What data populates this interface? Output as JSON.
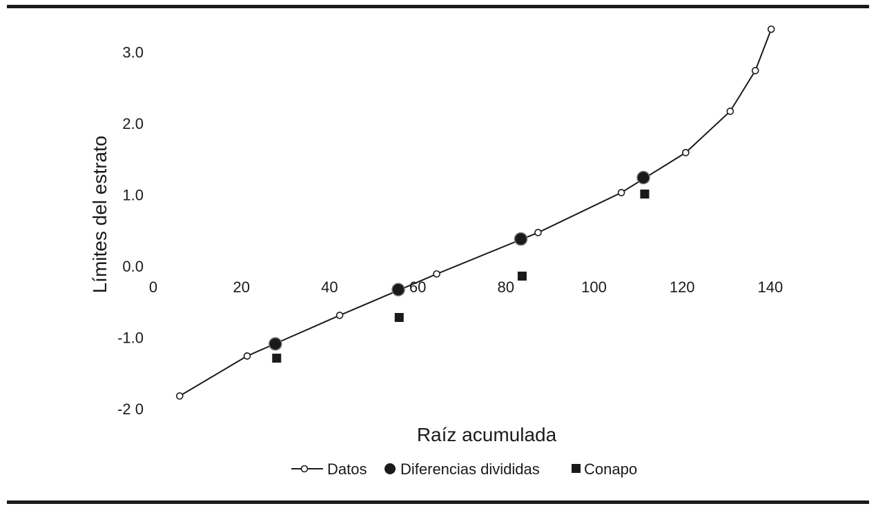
{
  "chart_data": {
    "type": "line",
    "title": "",
    "xlabel": "Raíz acumulada",
    "ylabel": "Límites del estrato",
    "xlim": [
      0,
      140
    ],
    "ylim": [
      -2.0,
      3.3
    ],
    "x_ticks": [
      0,
      20,
      40,
      60,
      80,
      100,
      120,
      140
    ],
    "x_tick_labels": [
      "0",
      "20",
      "40",
      "60",
      "80",
      "100",
      "120",
      "140"
    ],
    "y_ticks": [
      3.0,
      2.0,
      1.0,
      0.0,
      -1.0,
      -2.0
    ],
    "y_tick_labels": [
      "3.0",
      "2.0",
      "1.0",
      "0.0",
      "-1.0",
      "-2 0"
    ],
    "grid": false,
    "legend_position": "bottom-center",
    "series": [
      {
        "name": "Datos",
        "style": "line-open-circle",
        "color": "#1a1a1a",
        "points": [
          {
            "x": 6,
            "y": -1.82
          },
          {
            "x": 21.3,
            "y": -1.26
          },
          {
            "x": 42.3,
            "y": -0.69
          },
          {
            "x": 64.3,
            "y": -0.11
          },
          {
            "x": 87.3,
            "y": 0.47
          },
          {
            "x": 106.2,
            "y": 1.03
          },
          {
            "x": 120.8,
            "y": 1.59
          },
          {
            "x": 130.9,
            "y": 2.17
          },
          {
            "x": 136.6,
            "y": 2.74
          },
          {
            "x": 140.2,
            "y": 3.32
          }
        ]
      },
      {
        "name": "Diferencias divididas",
        "style": "filled-circle",
        "color": "#1a1a1a",
        "points": [
          {
            "x": 27.7,
            "y": -1.09
          },
          {
            "x": 55.6,
            "y": -0.33
          },
          {
            "x": 83.4,
            "y": 0.38
          },
          {
            "x": 111.2,
            "y": 1.24
          }
        ]
      },
      {
        "name": "Conapo",
        "style": "filled-square",
        "color": "#1a1a1a",
        "points": [
          {
            "x": 28,
            "y": -1.29
          },
          {
            "x": 55.8,
            "y": -0.72
          },
          {
            "x": 83.7,
            "y": -0.14
          },
          {
            "x": 111.5,
            "y": 1.01
          }
        ]
      }
    ]
  }
}
